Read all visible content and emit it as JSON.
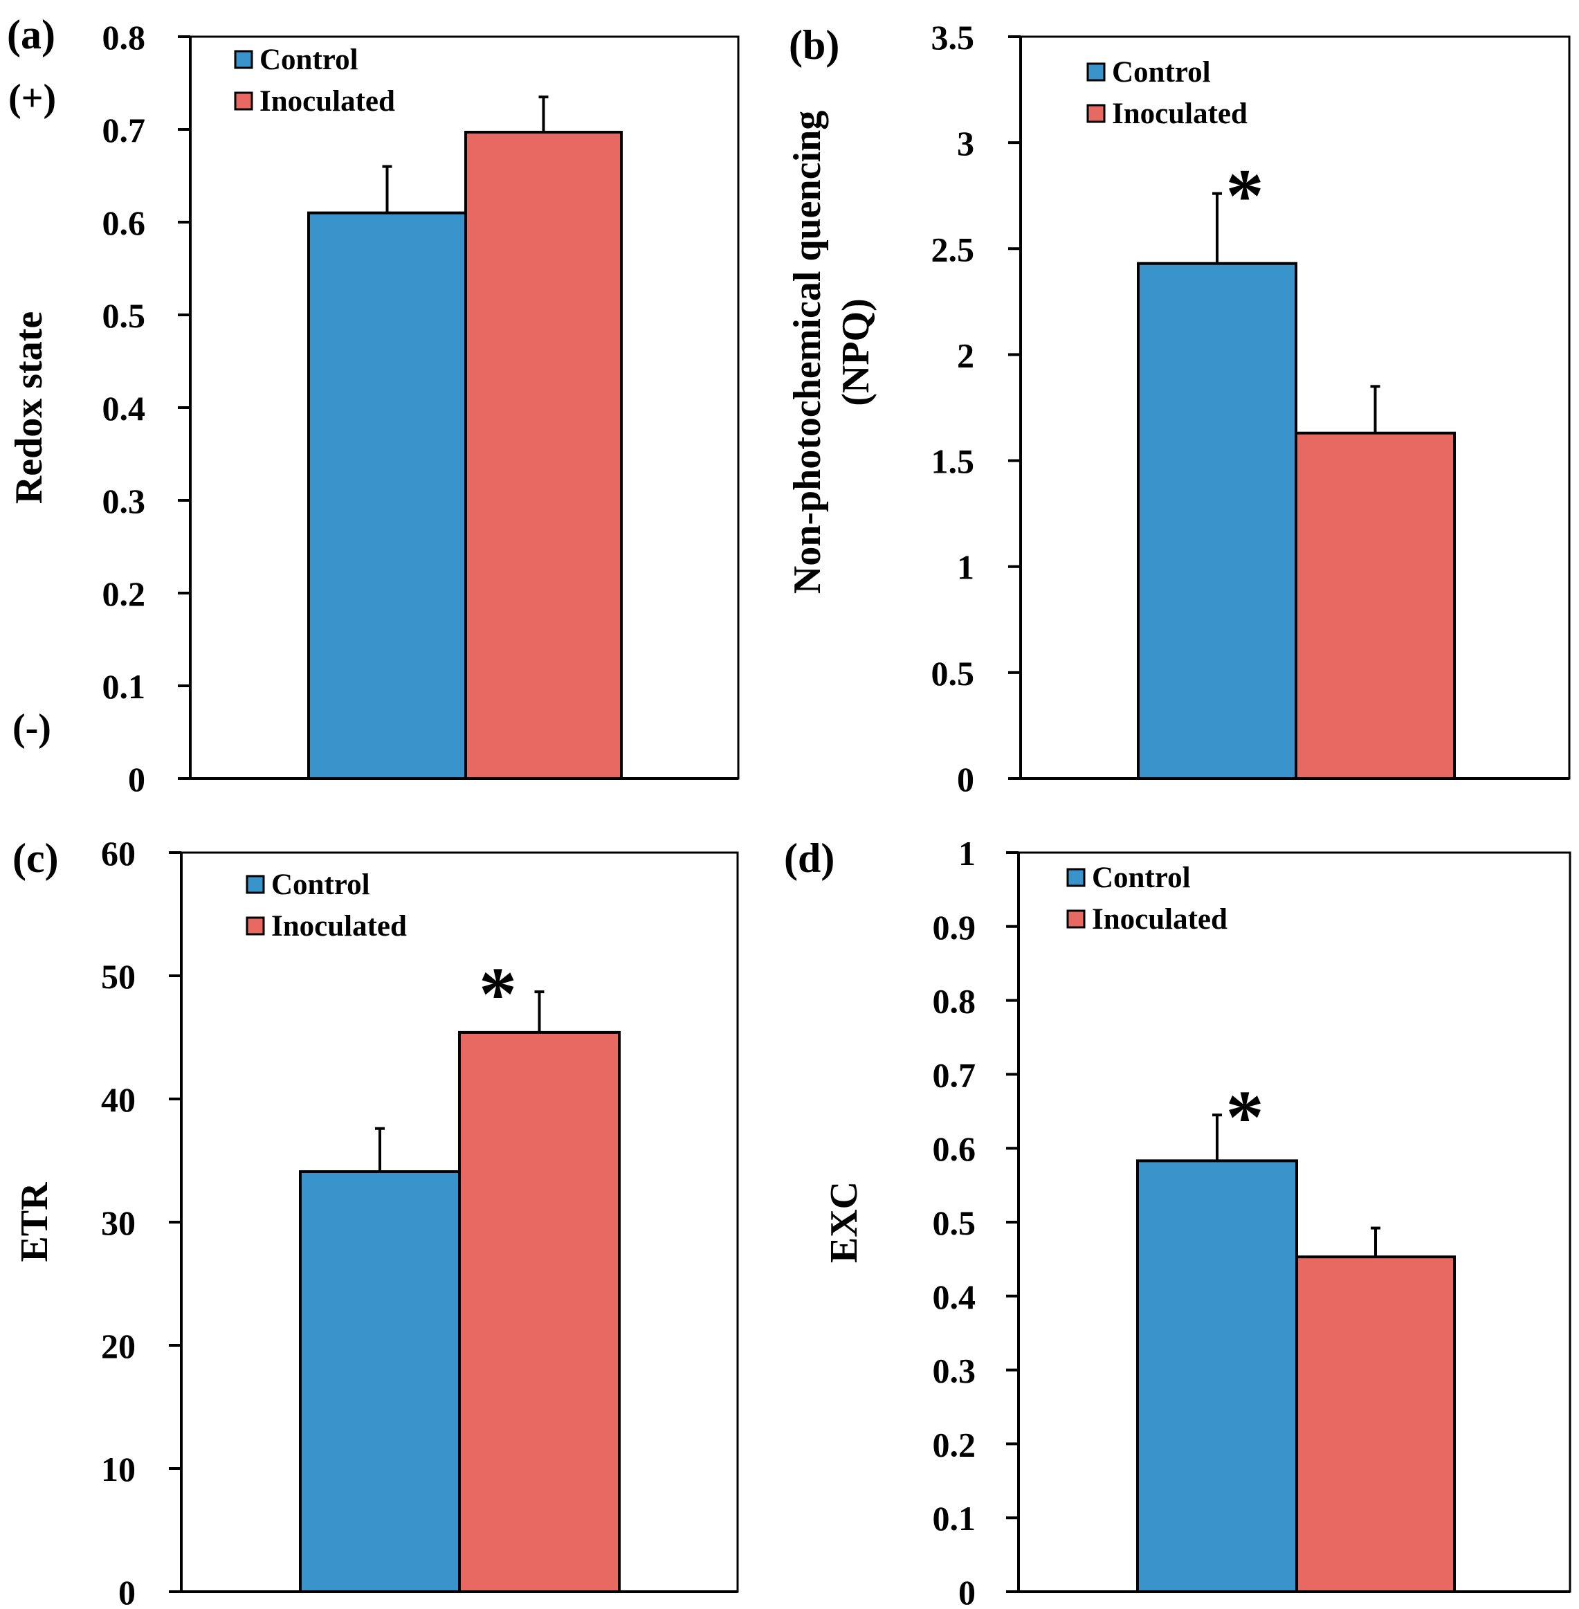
{
  "colors": {
    "control": "#3A94CC",
    "inoculated": "#E86962",
    "axis": "#000000"
  },
  "chart_data": [
    {
      "type": "bar",
      "panel": "(a)",
      "categories": [
        "Control",
        "Inoculated"
      ],
      "values": [
        0.61,
        0.697
      ],
      "errors": [
        0.05,
        0.038
      ],
      "ylabel": "Redox state",
      "ylim": [
        0,
        0.8
      ],
      "ticks": [
        "0",
        "0.1",
        "0.2",
        "0.3",
        "0.4",
        "0.5",
        "0.6",
        "0.7",
        "0.8"
      ],
      "legend": [
        "Control",
        "Inoculated"
      ],
      "significance": "",
      "extra_labels": {
        "top": "(+)",
        "bottom": "(-)"
      },
      "grid": false
    },
    {
      "type": "bar",
      "panel": "(b)",
      "categories": [
        "Control",
        "Inoculated"
      ],
      "values": [
        2.43,
        1.63
      ],
      "errors": [
        0.33,
        0.22
      ],
      "ylabel": [
        "Non-photochemical quencing",
        "(NPQ)"
      ],
      "ylim": [
        0,
        3.5
      ],
      "ticks": [
        "0",
        "0.5",
        "1",
        "1.5",
        "2",
        "2.5",
        "3",
        "3.5"
      ],
      "legend": [
        "Control",
        "Inoculated"
      ],
      "significance": "*",
      "significance_on": 0,
      "grid": false
    },
    {
      "type": "bar",
      "panel": "(c)",
      "categories": [
        "Control",
        "Inoculated"
      ],
      "values": [
        34.1,
        45.4
      ],
      "errors": [
        3.5,
        3.3
      ],
      "ylabel": "ETR",
      "ylim": [
        0,
        60
      ],
      "ticks": [
        "0",
        "10",
        "20",
        "30",
        "40",
        "50",
        "60"
      ],
      "legend": [
        "Control",
        "Inoculated"
      ],
      "significance": "*",
      "significance_on": 1,
      "grid": false
    },
    {
      "type": "bar",
      "panel": "(d)",
      "categories": [
        "Control",
        "Inoculated"
      ],
      "values": [
        0.583,
        0.453
      ],
      "errors": [
        0.062,
        0.039
      ],
      "ylabel": "EXC",
      "ylim": [
        0,
        1
      ],
      "ticks": [
        "0",
        "0.1",
        "0.2",
        "0.3",
        "0.4",
        "0.5",
        "0.6",
        "0.7",
        "0.8",
        "0.9",
        "1"
      ],
      "legend": [
        "Control",
        "Inoculated"
      ],
      "significance": "*",
      "significance_on": 0,
      "grid": false
    }
  ]
}
